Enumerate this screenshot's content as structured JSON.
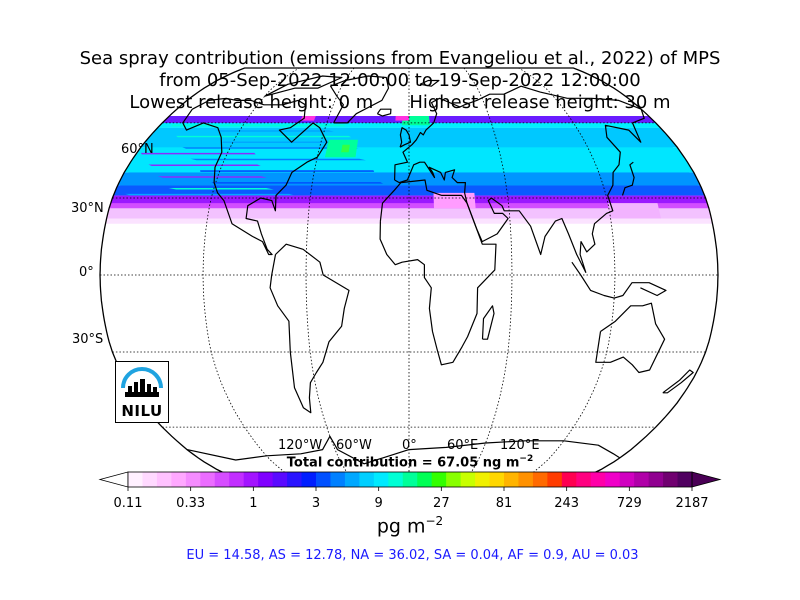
{
  "title": {
    "line1": "Sea spray contribution (emissions from Evangeliou et al., 2022) of MPS",
    "line2": "from 05-Sep-2022 12:00:00 to 19-Sep-2022 12:00:00",
    "lowest": "Lowest release height: 0 m",
    "highest": "Highest release height: 30 m"
  },
  "lat_labels": [
    "60°N",
    "30°N",
    "0°",
    "30°S"
  ],
  "lon_labels": [
    "120°W",
    "60°W",
    "0°",
    "60°E",
    "120°E"
  ],
  "total": {
    "prefix": "Total contribution = 67.05 ng m",
    "exp": "−2"
  },
  "colorbar": {
    "ticks": [
      "0.11",
      "0.33",
      "1",
      "3",
      "9",
      "27",
      "81",
      "243",
      "729",
      "2187"
    ],
    "unit": "pg m",
    "unit_exp": "−2",
    "colors": [
      "#fff0ff",
      "#ffd9ff",
      "#ffc2ff",
      "#ffa8ff",
      "#f58cff",
      "#eb6cff",
      "#d64dff",
      "#c22eff",
      "#a314ff",
      "#8000ff",
      "#5a0aff",
      "#2a14ff",
      "#001eff",
      "#0050ff",
      "#0080ff",
      "#00a8ff",
      "#00cfff",
      "#00eaff",
      "#00ffd5",
      "#00ff99",
      "#00ff55",
      "#33ff00",
      "#88ff00",
      "#c8ff00",
      "#f0f000",
      "#ffd700",
      "#ffb400",
      "#ff9100",
      "#ff6a00",
      "#ff3c00",
      "#ff0050",
      "#ff0080",
      "#ff00a8",
      "#f000c8",
      "#d000c0",
      "#b000a8",
      "#900090",
      "#700070",
      "#500060"
    ]
  },
  "regions": "EU = 14.58,  AS = 12.78,  NA = 36.02,  SA = 0.04,  AF = 0.9,  AU = 0.03",
  "logo": {
    "text": "NILU"
  }
}
